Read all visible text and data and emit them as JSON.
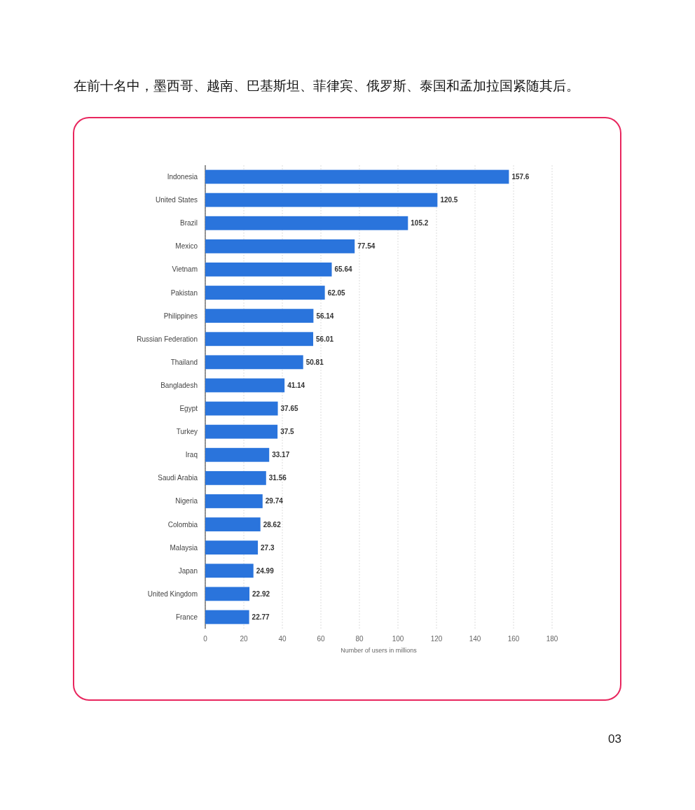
{
  "chart_data": {
    "type": "bar",
    "orientation": "horizontal",
    "title": "在前十名中，墨西哥、越南、巴基斯坦、菲律宾、俄罗斯、泰国和孟加拉国紧随其后。",
    "xlabel": "Number of users in millions",
    "categories": [
      "Indonesia",
      "United States",
      "Brazil",
      "Mexico",
      "Vietnam",
      "Pakistan",
      "Philippines",
      "Russian Federation",
      "Thailand",
      "Bangladesh",
      "Egypt",
      "Turkey",
      "Iraq",
      "Saudi Arabia",
      "Nigeria",
      "Colombia",
      "Malaysia",
      "Japan",
      "United Kingdom",
      "France"
    ],
    "values": [
      157.6,
      120.5,
      105.2,
      77.54,
      65.64,
      62.05,
      56.14,
      56.01,
      50.81,
      41.14,
      37.65,
      37.5,
      33.17,
      31.56,
      29.74,
      28.62,
      27.3,
      24.99,
      22.92,
      22.77
    ],
    "color": "#2a74dc",
    "xlim": [
      0,
      180
    ],
    "xticks": [
      0,
      20,
      40,
      60,
      80,
      100,
      120,
      140,
      160,
      180
    ],
    "grid": "x",
    "data_labels": true,
    "annotations": [
      "03"
    ]
  }
}
